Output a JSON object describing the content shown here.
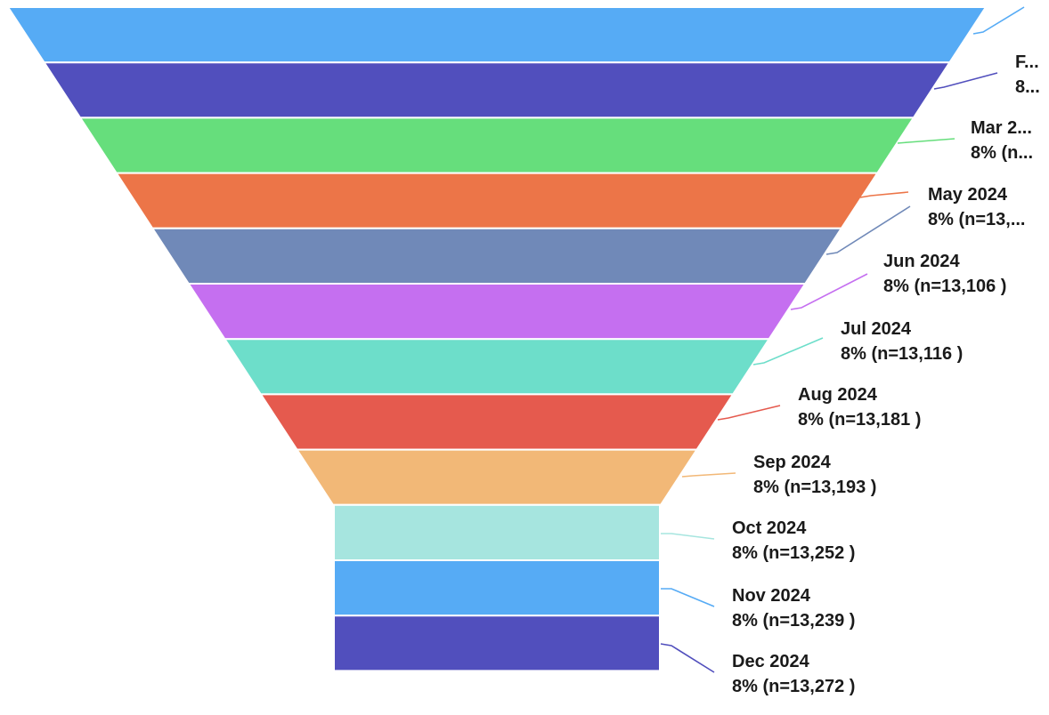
{
  "chart_data": {
    "type": "funnel",
    "stages": [
      {
        "label": "",
        "percent_text": "",
        "color": "#56abf5"
      },
      {
        "label": "F...",
        "percent_text": "8...",
        "color": "#514fbd"
      },
      {
        "label": "Mar 2...",
        "percent_text": "8% (n...",
        "color": "#66de7c"
      },
      {
        "label": "",
        "percent_text": "",
        "color": "#ec7548"
      },
      {
        "label": "May 2024",
        "percent_text": "8% (n=13,...",
        "color": "#7089b8"
      },
      {
        "label": "Jun 2024",
        "percent_text": "8% (n=13,106 )",
        "color": "#c56ff0"
      },
      {
        "label": "Jul 2024",
        "percent_text": "8% (n=13,116 )",
        "color": "#6ddeca"
      },
      {
        "label": "Aug 2024",
        "percent_text": "8% (n=13,181 )",
        "color": "#e55a4e"
      },
      {
        "label": "Sep 2024",
        "percent_text": "8% (n=13,193 )",
        "color": "#f2b877"
      },
      {
        "label": "Oct 2024",
        "percent_text": "8% (n=13,252 )",
        "color": "#a6e5df"
      },
      {
        "label": "Nov 2024",
        "percent_text": "8% (n=13,239 )",
        "color": "#56abf5"
      },
      {
        "label": "Dec 2024",
        "percent_text": "8% (n=13,272 )",
        "color": "#514fbd"
      }
    ]
  }
}
